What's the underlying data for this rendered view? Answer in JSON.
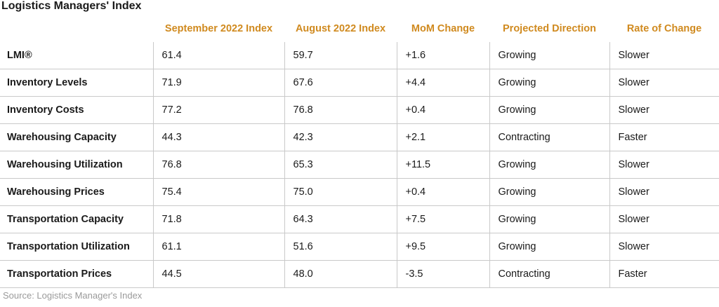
{
  "title": "Logistics Managers' Index",
  "table": {
    "header": [
      "September 2022 Index",
      "August 2022 Index",
      "MoM Change",
      "Projected Direction",
      "Rate of Change"
    ],
    "rows": [
      [
        "LMI®",
        "61.4",
        "59.7",
        "+1.6",
        "Growing",
        "Slower"
      ],
      [
        "Inventory Levels",
        "71.9",
        "67.6",
        "+4.4",
        "Growing",
        "Slower"
      ],
      [
        "Inventory Costs",
        "77.2",
        "76.8",
        "+0.4",
        "Growing",
        "Slower"
      ],
      [
        "Warehousing Capacity",
        "44.3",
        "42.3",
        "+2.1",
        "Contracting",
        "Faster"
      ],
      [
        "Warehousing Utilization",
        "76.8",
        "65.3",
        "+11.5",
        "Growing",
        "Slower"
      ],
      [
        "Warehousing Prices",
        "75.4",
        "75.0",
        "+0.4",
        "Growing",
        "Slower"
      ],
      [
        "Transportation Capacity",
        "71.8",
        "64.3",
        "+7.5",
        "Growing",
        "Slower"
      ],
      [
        "Transportation Utilization",
        "61.1",
        "51.6",
        "+9.5",
        "Growing",
        "Slower"
      ],
      [
        "Transportation Prices",
        "44.5",
        "48.0",
        "-3.5",
        "Contracting",
        "Faster"
      ]
    ]
  },
  "source": "Source: Logistics Manager's Index"
}
